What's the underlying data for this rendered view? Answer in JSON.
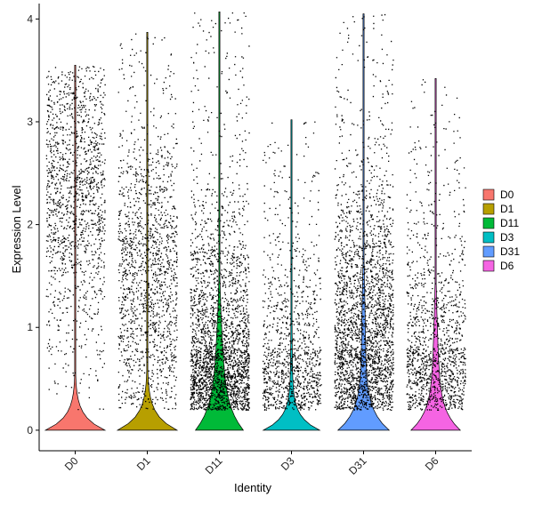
{
  "chart_data": {
    "type": "violin",
    "xlabel": "Identity",
    "ylabel": "Expression Level",
    "categories": [
      "D0",
      "D1",
      "D11",
      "D3",
      "D31",
      "D6"
    ],
    "ylim": [
      -0.2,
      4.15
    ],
    "yticks": [
      0,
      1,
      2,
      3,
      4
    ],
    "legend_position": "right",
    "series": [
      {
        "name": "D0",
        "color": "#F8766D",
        "max": 3.55,
        "zero_fraction": 0.97,
        "nonzero_mode": 2.35,
        "point_count": 1400
      },
      {
        "name": "D1",
        "color": "#B79F00",
        "max": 3.87,
        "zero_fraction": 0.97,
        "nonzero_mode": 1.5,
        "point_count": 1500
      },
      {
        "name": "D11",
        "color": "#00BA38",
        "max": 4.07,
        "zero_fraction": 0.55,
        "nonzero_mode": 0.6,
        "point_count": 2600
      },
      {
        "name": "D3",
        "color": "#00BFC4",
        "max": 3.02,
        "zero_fraction": 0.85,
        "nonzero_mode": 0.6,
        "point_count": 1100
      },
      {
        "name": "D31",
        "color": "#619CFF",
        "max": 4.05,
        "zero_fraction": 0.7,
        "nonzero_mode": 0.9,
        "point_count": 2600
      },
      {
        "name": "D6",
        "color": "#F564E3",
        "max": 3.42,
        "zero_fraction": 0.6,
        "nonzero_mode": 0.6,
        "point_count": 1300
      }
    ]
  }
}
